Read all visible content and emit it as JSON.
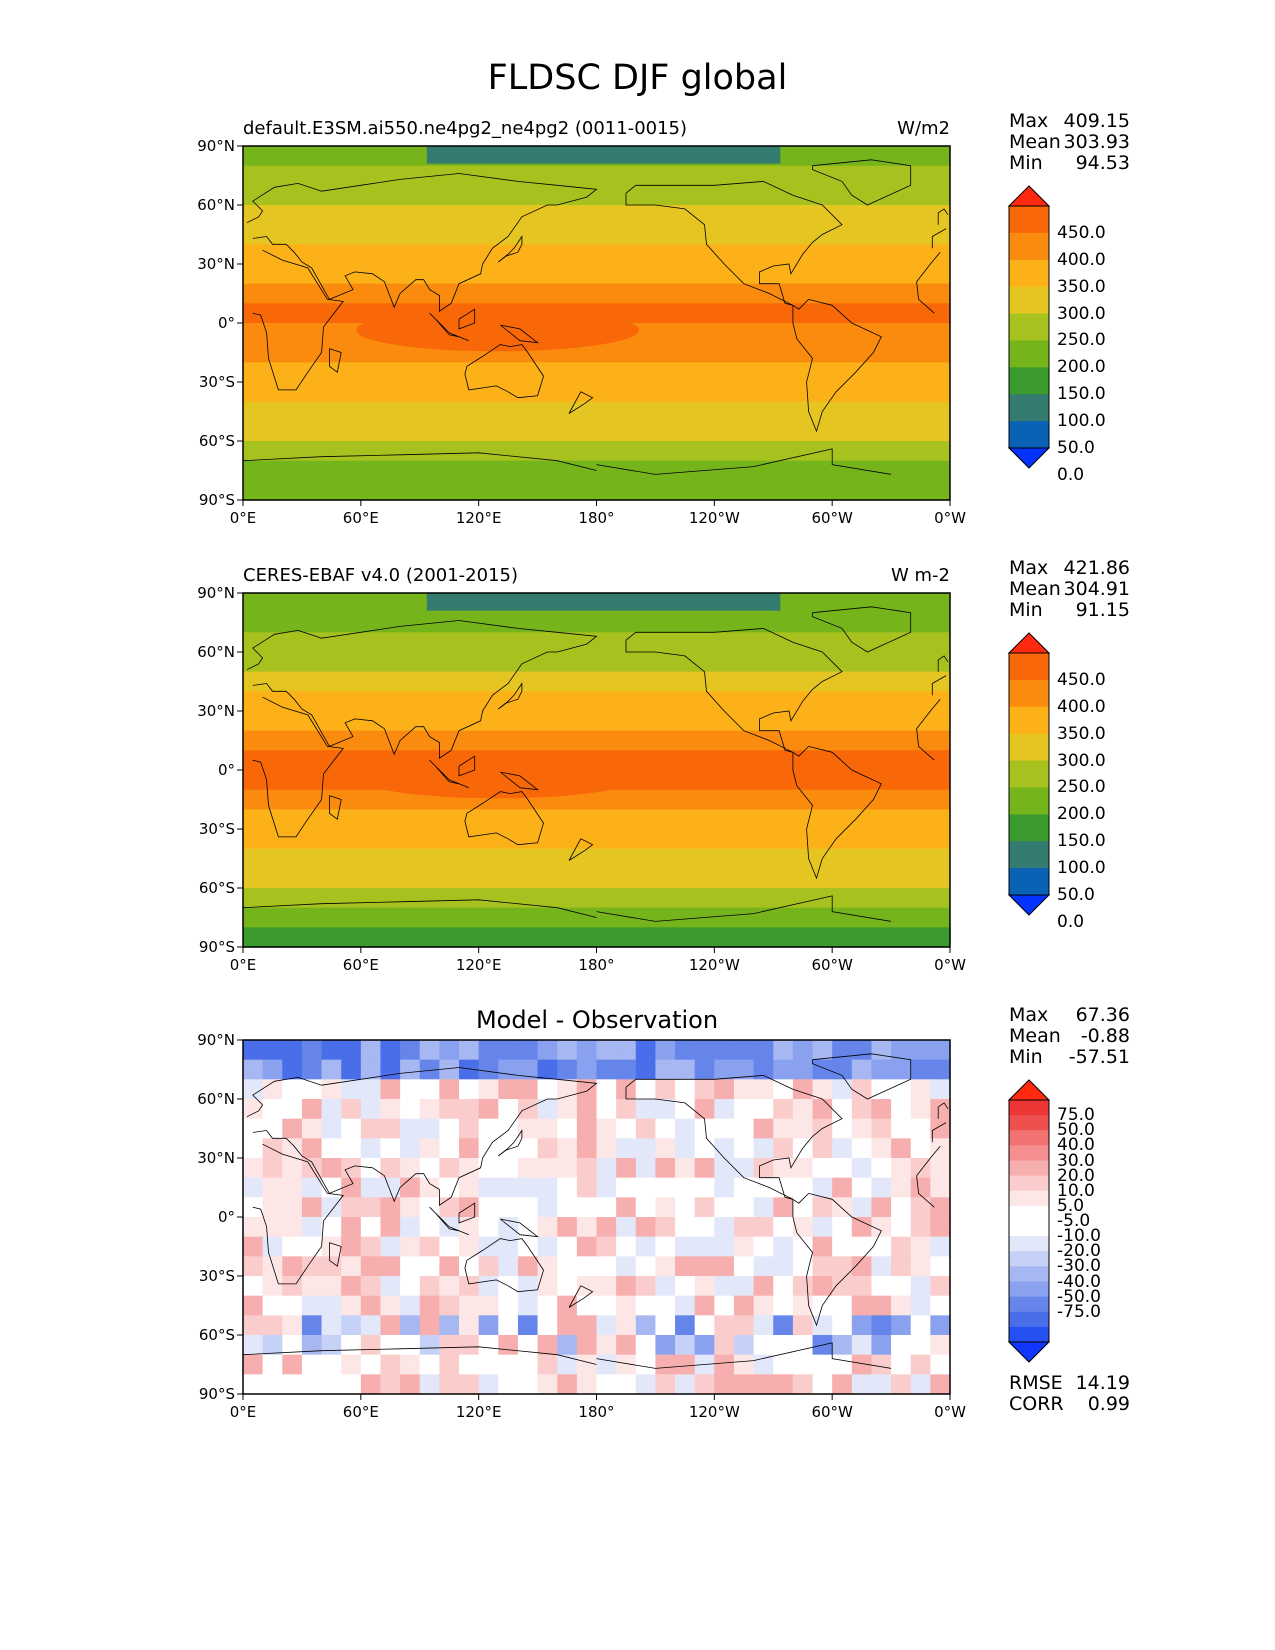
{
  "title": "FLDSC DJF global",
  "colors": {
    "sequential": [
      "#0433ff",
      "#0a62b6",
      "#357c70",
      "#3b9b2f",
      "#76b41b",
      "#a7c21e",
      "#e5c521",
      "#fbb117",
      "#fa8b0e",
      "#f96808",
      "#ff2a0f"
    ],
    "diverging": [
      "#1137ff",
      "#2550f2",
      "#4a6ee9",
      "#6685ea",
      "#8aa1f0",
      "#a6b7f2",
      "#c5d1f6",
      "#e2e7fa",
      "#ffffff",
      "#ffffff",
      "#fde6e6",
      "#fbcccc",
      "#f7aeae",
      "#f58f8f",
      "#f27272",
      "#ee5050",
      "#ec3636",
      "#ff2a0f"
    ],
    "land_outline": "#000000"
  },
  "panels": [
    {
      "id": "test",
      "title_left": "default.E3SM.ai550.ne4pg2_ne4pg2 (0011-0015)",
      "units": "W/m2",
      "title_center": "",
      "stats": [
        {
          "label": "Max",
          "value": "409.15"
        },
        {
          "label": "Mean",
          "value": "303.93"
        },
        {
          "label": "Min",
          "value": "94.53"
        }
      ],
      "colorbar": {
        "type": "sequential",
        "labels": [
          "450.0",
          "400.0",
          "350.0",
          "300.0",
          "250.0",
          "200.0",
          "150.0",
          "100.0",
          "50.0",
          "0.0"
        ]
      },
      "extra_stats": []
    },
    {
      "id": "reference",
      "title_left": "CERES-EBAF v4.0 (2001-2015)",
      "units": "W m-2",
      "title_center": "",
      "stats": [
        {
          "label": "Max",
          "value": "421.86"
        },
        {
          "label": "Mean",
          "value": "304.91"
        },
        {
          "label": "Min",
          "value": "91.15"
        }
      ],
      "colorbar": {
        "type": "sequential",
        "labels": [
          "450.0",
          "400.0",
          "350.0",
          "300.0",
          "250.0",
          "200.0",
          "150.0",
          "100.0",
          "50.0",
          "0.0"
        ]
      },
      "extra_stats": []
    },
    {
      "id": "difference",
      "title_left": "",
      "units": "",
      "title_center": "Model - Observation",
      "stats": [
        {
          "label": "Max",
          "value": "67.36"
        },
        {
          "label": "Mean",
          "value": "-0.88"
        },
        {
          "label": "Min",
          "value": "-57.51"
        }
      ],
      "colorbar": {
        "type": "diverging",
        "labels": [
          "75.0",
          "50.0",
          "40.0",
          "30.0",
          "20.0",
          "10.0",
          "5.0",
          "-5.0",
          "-10.0",
          "-20.0",
          "-30.0",
          "-40.0",
          "-50.0",
          "-75.0"
        ]
      },
      "extra_stats": [
        {
          "label": "RMSE",
          "value": "14.19"
        },
        {
          "label": "CORR",
          "value": "0.99"
        }
      ]
    }
  ],
  "axes": {
    "lat_ticks": [
      "90°N",
      "60°N",
      "30°N",
      "0°",
      "30°S",
      "60°S",
      "90°S"
    ],
    "lon_ticks": [
      "0°E",
      "60°E",
      "120°E",
      "180°",
      "120°W",
      "60°W",
      "0°W"
    ]
  }
}
